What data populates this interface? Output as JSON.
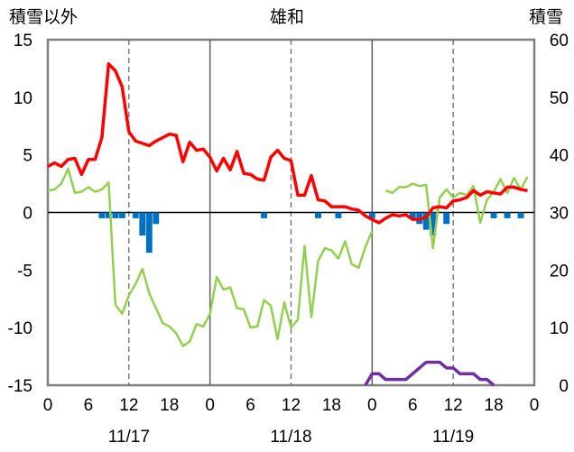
{
  "chart_data": {
    "type": "line",
    "title": "雄和",
    "left_axis_label": "積雪以外",
    "right_axis_label": "積雪",
    "left_ylim": [
      -15,
      15
    ],
    "left_yticks": [
      15,
      10,
      5,
      0,
      -5,
      -10,
      -15
    ],
    "right_ylim": [
      0,
      60
    ],
    "right_yticks": [
      60,
      50,
      40,
      30,
      20,
      10,
      0
    ],
    "xlim": [
      0,
      72
    ],
    "xticks": [
      0,
      6,
      12,
      18,
      24,
      30,
      36,
      42,
      48,
      54,
      60,
      66,
      72
    ],
    "xtick_labels": [
      "0",
      "6",
      "12",
      "18",
      "0",
      "6",
      "12",
      "18",
      "0",
      "6",
      "12",
      "18",
      "0"
    ],
    "date_labels": [
      {
        "x": 12,
        "label": "11/17"
      },
      {
        "x": 36,
        "label": "11/18"
      },
      {
        "x": 60,
        "label": "11/19"
      }
    ],
    "grid": "dashed vertical lines at 12 and 60; solid vertical lines at 24 and 48; zero line horizontal",
    "colors": {
      "red_series": "#ff0000",
      "green_series": "#92d050",
      "blue_bars": "#0070c0",
      "purple_series": "#7030a0"
    },
    "red_series": [
      [
        0,
        4.0
      ],
      [
        1,
        4.3
      ],
      [
        2,
        4.0
      ],
      [
        3,
        4.6
      ],
      [
        4,
        4.7
      ],
      [
        5,
        3.3
      ],
      [
        6,
        4.6
      ],
      [
        7,
        4.6
      ],
      [
        8,
        6.5
      ],
      [
        9,
        12.9
      ],
      [
        10,
        12.3
      ],
      [
        11,
        10.9
      ],
      [
        12,
        7.0
      ],
      [
        13,
        6.2
      ],
      [
        14,
        6.0
      ],
      [
        15,
        5.8
      ],
      [
        16,
        6.2
      ],
      [
        17,
        6.5
      ],
      [
        18,
        6.8
      ],
      [
        19,
        6.7
      ],
      [
        20,
        4.4
      ],
      [
        21,
        6.1
      ],
      [
        22,
        5.4
      ],
      [
        23,
        5.5
      ],
      [
        24,
        4.8
      ],
      [
        25,
        3.6
      ],
      [
        26,
        4.7
      ],
      [
        27,
        3.7
      ],
      [
        28,
        5.3
      ],
      [
        29,
        3.4
      ],
      [
        30,
        3.3
      ],
      [
        31,
        2.9
      ],
      [
        32,
        2.8
      ],
      [
        33,
        4.8
      ],
      [
        34,
        5.4
      ],
      [
        35,
        4.7
      ],
      [
        36,
        4.5
      ],
      [
        37,
        1.5
      ],
      [
        38,
        1.5
      ],
      [
        39,
        3.2
      ],
      [
        40,
        1.1
      ],
      [
        41,
        1.0
      ],
      [
        42,
        0.5
      ],
      [
        43,
        0.5
      ],
      [
        44,
        0.5
      ],
      [
        45,
        0.3
      ],
      [
        46,
        0.2
      ],
      [
        47,
        -0.3
      ],
      [
        48,
        -0.6
      ],
      [
        49,
        -0.9
      ],
      [
        50,
        -0.5
      ],
      [
        51,
        -0.2
      ],
      [
        52,
        -0.3
      ],
      [
        53,
        -0.2
      ],
      [
        54,
        -0.6
      ],
      [
        55,
        -0.6
      ],
      [
        56,
        -0.4
      ],
      [
        57,
        0.4
      ],
      [
        58,
        0.5
      ],
      [
        59,
        0.4
      ],
      [
        60,
        1.0
      ],
      [
        61,
        1.1
      ],
      [
        62,
        1.3
      ],
      [
        63,
        1.9
      ],
      [
        64,
        1.5
      ],
      [
        65,
        1.8
      ],
      [
        66,
        1.7
      ],
      [
        67,
        1.6
      ],
      [
        68,
        2.2
      ],
      [
        69,
        2.2
      ],
      [
        70,
        2.0
      ],
      [
        71,
        1.9
      ]
    ],
    "green_series": [
      [
        0,
        1.9
      ],
      [
        1,
        2.0
      ],
      [
        2,
        2.5
      ],
      [
        3,
        3.8
      ],
      [
        4,
        1.7
      ],
      [
        5,
        1.8
      ],
      [
        6,
        2.2
      ],
      [
        7,
        1.8
      ],
      [
        8,
        2.0
      ],
      [
        9,
        2.6
      ],
      [
        10,
        -8.0
      ],
      [
        11,
        -8.8
      ],
      [
        12,
        -7.2
      ],
      [
        13,
        -6.2
      ],
      [
        14,
        -4.9
      ],
      [
        15,
        -7.0
      ],
      [
        16,
        -8.3
      ],
      [
        17,
        -9.6
      ],
      [
        18,
        -9.9
      ],
      [
        19,
        -10.5
      ],
      [
        20,
        -11.6
      ],
      [
        21,
        -11.2
      ],
      [
        22,
        -9.7
      ],
      [
        23,
        -9.9
      ],
      [
        24,
        -8.8
      ],
      [
        25,
        -5.6
      ],
      [
        26,
        -6.7
      ],
      [
        27,
        -6.5
      ],
      [
        28,
        -8.3
      ],
      [
        29,
        -8.4
      ],
      [
        30,
        -10.0
      ],
      [
        31,
        -9.9
      ],
      [
        32,
        -7.6
      ],
      [
        33,
        -8.1
      ],
      [
        34,
        -11.0
      ],
      [
        35,
        -7.8
      ],
      [
        36,
        -10.0
      ],
      [
        37,
        -9.3
      ],
      [
        38,
        -2.9
      ],
      [
        39,
        -9.1
      ],
      [
        40,
        -4.2
      ],
      [
        41,
        -3.1
      ],
      [
        42,
        -3.3
      ],
      [
        43,
        -4.0
      ],
      [
        44,
        -2.5
      ],
      [
        45,
        -4.5
      ],
      [
        46,
        -4.8
      ],
      [
        47,
        -3.0
      ],
      [
        48,
        -1.6
      ],
      [
        50,
        1.9
      ],
      [
        51,
        1.7
      ],
      [
        52,
        2.2
      ],
      [
        53,
        2.2
      ],
      [
        54,
        2.5
      ],
      [
        55,
        2.3
      ],
      [
        56,
        2.4
      ],
      [
        57,
        -3.1
      ],
      [
        58,
        1.3
      ],
      [
        59,
        2.0
      ],
      [
        60,
        1.3
      ],
      [
        61,
        1.7
      ],
      [
        62,
        1.5
      ],
      [
        63,
        2.3
      ],
      [
        64,
        -0.9
      ],
      [
        65,
        1.1
      ],
      [
        66,
        1.8
      ],
      [
        67,
        2.9
      ],
      [
        68,
        1.7
      ],
      [
        69,
        3.0
      ],
      [
        70,
        2.0
      ],
      [
        71,
        3.1
      ]
    ],
    "blue_bars": [
      [
        8,
        -0.5
      ],
      [
        9,
        -0.5
      ],
      [
        10,
        -0.5
      ],
      [
        11,
        -0.5
      ],
      [
        13,
        -0.5
      ],
      [
        14,
        -2.0
      ],
      [
        15,
        -3.5
      ],
      [
        16,
        -1.0
      ],
      [
        32,
        -0.5
      ],
      [
        40,
        -0.5
      ],
      [
        43,
        -0.5
      ],
      [
        48,
        -0.5
      ],
      [
        54,
        -0.5
      ],
      [
        55,
        -1.0
      ],
      [
        56,
        -1.5
      ],
      [
        57,
        -2.0
      ],
      [
        59,
        -1.0
      ],
      [
        66,
        -0.5
      ],
      [
        68,
        -0.5
      ],
      [
        70,
        -0.5
      ]
    ],
    "purple_series": [
      [
        0,
        0
      ],
      [
        47,
        0
      ],
      [
        48,
        2
      ],
      [
        49,
        2
      ],
      [
        50,
        1
      ],
      [
        51,
        1
      ],
      [
        52,
        1
      ],
      [
        53,
        1
      ],
      [
        54,
        2
      ],
      [
        55,
        3
      ],
      [
        56,
        4
      ],
      [
        57,
        4
      ],
      [
        58,
        4
      ],
      [
        59,
        3
      ],
      [
        60,
        3
      ],
      [
        61,
        2
      ],
      [
        62,
        2
      ],
      [
        63,
        2
      ],
      [
        64,
        1
      ],
      [
        65,
        1
      ],
      [
        66,
        0
      ],
      [
        72,
        0
      ]
    ]
  }
}
